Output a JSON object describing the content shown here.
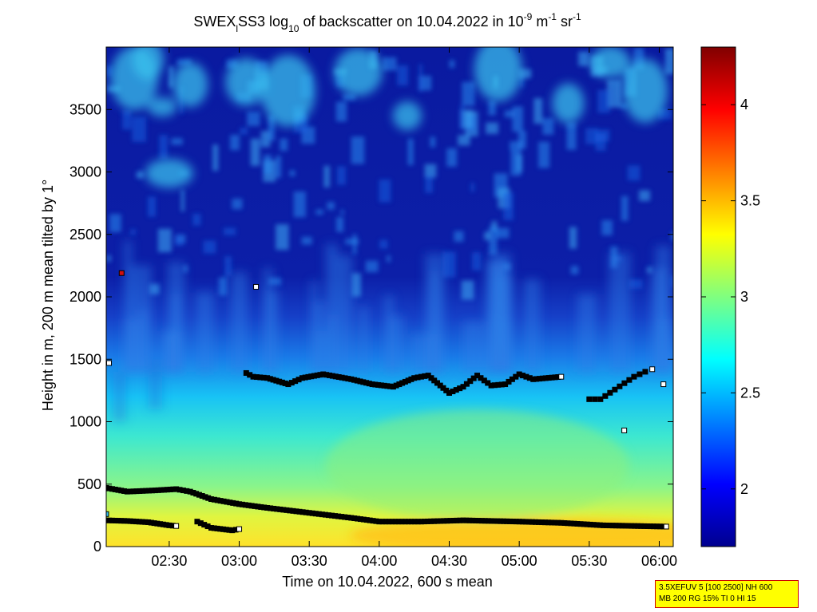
{
  "chart_data": {
    "type": "heatmap",
    "title": {
      "prefix": "SWEX",
      "sub_l": "l",
      "mid": "SS3 log",
      "sub_10": "10",
      "text": " of backscatter on 10.04.2022 in 10",
      "sup_9": "-9",
      "unit_m": " m",
      "sup_1a": "-1",
      "unit_sr": " sr",
      "sup_1b": "-1"
    },
    "xlabel": "Time on 10.04.2022, 600 s mean",
    "ylabel": "Height in m, 200 m mean tilted by 1°",
    "xlim_hours": [
      2.05,
      6.1
    ],
    "ylim": [
      0,
      4000
    ],
    "x_ticks": [
      {
        "h": 2.5,
        "label": "02:30"
      },
      {
        "h": 3.0,
        "label": "03:00"
      },
      {
        "h": 3.5,
        "label": "03:30"
      },
      {
        "h": 4.0,
        "label": "04:00"
      },
      {
        "h": 4.5,
        "label": "04:30"
      },
      {
        "h": 5.0,
        "label": "05:00"
      },
      {
        "h": 5.5,
        "label": "05:30"
      },
      {
        "h": 6.0,
        "label": "06:00"
      }
    ],
    "y_ticks": [
      0,
      500,
      1000,
      1500,
      2000,
      2500,
      3000,
      3500
    ],
    "colorbar": {
      "range": [
        1.7,
        4.3
      ],
      "ticks": [
        "2",
        "2.5",
        "3",
        "3.5",
        "4"
      ],
      "colormap": "jet"
    },
    "layers": {
      "cloud_base_lower": [
        [
          2.05,
          210
        ],
        [
          2.2,
          205
        ],
        [
          2.35,
          195
        ],
        [
          2.5,
          170
        ],
        [
          2.55,
          165
        ]
      ],
      "cloud_base_lower2": [
        [
          2.7,
          200
        ],
        [
          2.8,
          150
        ],
        [
          2.95,
          130
        ],
        [
          3.0,
          140
        ]
      ],
      "boundary_layer": [
        [
          2.05,
          470
        ],
        [
          2.2,
          440
        ],
        [
          2.4,
          450
        ],
        [
          2.55,
          460
        ],
        [
          2.65,
          440
        ],
        [
          2.8,
          380
        ],
        [
          3.0,
          340
        ],
        [
          3.2,
          310
        ],
        [
          3.5,
          270
        ],
        [
          3.8,
          230
        ],
        [
          4.0,
          200
        ],
        [
          4.3,
          200
        ],
        [
          4.6,
          210
        ],
        [
          5.0,
          200
        ],
        [
          5.3,
          190
        ],
        [
          5.6,
          170
        ],
        [
          6.05,
          160
        ]
      ],
      "cloud_layer_mid": [
        [
          3.05,
          1390
        ],
        [
          3.1,
          1360
        ],
        [
          3.2,
          1350
        ],
        [
          3.35,
          1300
        ],
        [
          3.45,
          1350
        ],
        [
          3.6,
          1380
        ],
        [
          3.8,
          1340
        ],
        [
          3.95,
          1300
        ],
        [
          4.1,
          1280
        ],
        [
          4.25,
          1350
        ],
        [
          4.35,
          1370
        ],
        [
          4.5,
          1230
        ],
        [
          4.6,
          1280
        ],
        [
          4.7,
          1370
        ],
        [
          4.8,
          1290
        ],
        [
          4.9,
          1300
        ],
        [
          5.0,
          1380
        ],
        [
          5.1,
          1340
        ],
        [
          5.3,
          1360
        ]
      ],
      "cloud_layer_right": [
        [
          5.5,
          1180
        ],
        [
          5.58,
          1180
        ],
        [
          5.82,
          1360
        ],
        [
          5.9,
          1400
        ],
        [
          5.95,
          1420
        ]
      ],
      "isolated_points": [
        [
          2.07,
          1470
        ],
        [
          2.16,
          2190
        ],
        [
          3.12,
          2080
        ],
        [
          5.75,
          930
        ],
        [
          6.03,
          1300
        ],
        [
          2.05,
          260
        ]
      ]
    }
  },
  "info_box": {
    "line1": "3.5XEFUV 5 [100 2500] NH 600",
    "line2": "MB 200 RG 15% TI 0 HI 15"
  }
}
